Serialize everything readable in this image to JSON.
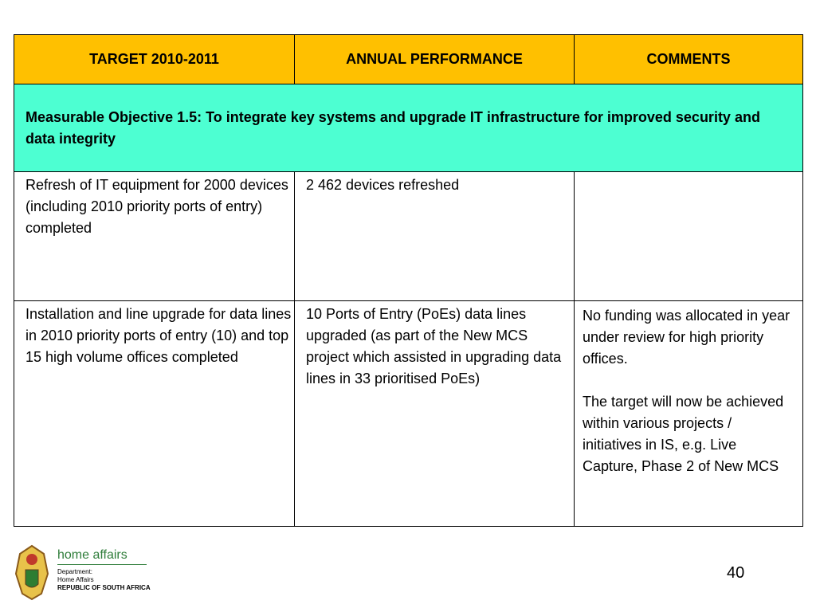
{
  "table": {
    "header": [
      "TARGET 2010-2011",
      "ANNUAL PERFORMANCE",
      "COMMENTS"
    ],
    "objective": "Measurable Objective 1.5: To integrate key systems and upgrade IT infrastructure for improved security and data integrity",
    "rows": [
      [
        "Refresh of IT equipment for 2000 devices (including 2010 priority ports of entry) completed",
        "2 462 devices refreshed",
        []
      ],
      [
        "Installation and line upgrade for data lines in 2010 priority ports of entry (10) and top 15 high volume offices completed",
        "10 Ports of Entry (PoEs)  data lines upgraded (as part of the New MCS project which assisted in upgrading data lines in 33 prioritised PoEs)",
        [
          "No funding was allocated in year under review for high priority offices.",
          "The target will now be achieved within various projects / initiatives in IS, e.g. Live Capture, Phase 2 of New MCS"
        ]
      ]
    ]
  },
  "footer": {
    "logo_title": "home affairs",
    "logo_lines": [
      "Department:",
      "Home Affairs",
      "REPUBLIC OF SOUTH AFRICA"
    ],
    "page_number": "40"
  }
}
